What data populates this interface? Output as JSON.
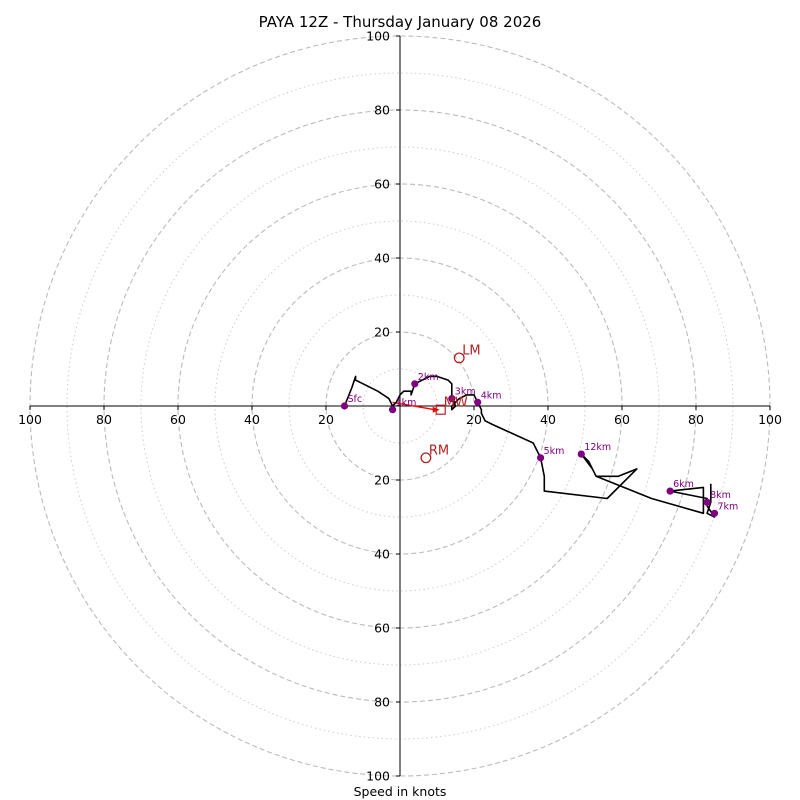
{
  "chart_data": {
    "type": "hodograph",
    "title": "PAYA 12Z - Thursday January 08 2026",
    "xlabel": "Speed in knots",
    "range": [
      -100,
      100
    ],
    "rings_major": [
      20,
      40,
      60,
      80,
      100
    ],
    "rings_minor": [
      10,
      30,
      50,
      70,
      90
    ],
    "x_ticks": [
      {
        "value": -100,
        "label": "100"
      },
      {
        "value": -80,
        "label": "80"
      },
      {
        "value": -60,
        "label": "60"
      },
      {
        "value": -40,
        "label": "40"
      },
      {
        "value": -20,
        "label": "20"
      },
      {
        "value": 20,
        "label": "20"
      },
      {
        "value": 40,
        "label": "40"
      },
      {
        "value": 60,
        "label": "60"
      },
      {
        "value": 80,
        "label": "80"
      },
      {
        "value": 100,
        "label": "100"
      }
    ],
    "y_ticks": [
      {
        "value": 100,
        "label": "100"
      },
      {
        "value": 80,
        "label": "80"
      },
      {
        "value": 60,
        "label": "60"
      },
      {
        "value": 40,
        "label": "40"
      },
      {
        "value": 20,
        "label": "20"
      },
      {
        "value": -20,
        "label": "20"
      },
      {
        "value": -40,
        "label": "40"
      },
      {
        "value": -60,
        "label": "60"
      },
      {
        "value": -80,
        "label": "80"
      },
      {
        "value": -100,
        "label": "100"
      }
    ],
    "hodograph_trace": [
      [
        -15,
        0
      ],
      [
        -13,
        5
      ],
      [
        -12,
        8
      ],
      [
        -12,
        7
      ],
      [
        -6,
        4
      ],
      [
        -3,
        2
      ],
      [
        -2,
        0
      ],
      [
        -1,
        1
      ],
      [
        0,
        3
      ],
      [
        1,
        4
      ],
      [
        3,
        4
      ],
      [
        3,
        3
      ],
      [
        4,
        6
      ],
      [
        6,
        7
      ],
      [
        8,
        8
      ],
      [
        10,
        8
      ],
      [
        13,
        7
      ],
      [
        14,
        6
      ],
      [
        14,
        3
      ],
      [
        15,
        0
      ],
      [
        14,
        -1
      ],
      [
        14,
        0
      ],
      [
        16,
        2
      ],
      [
        18,
        3
      ],
      [
        20,
        3
      ],
      [
        21,
        1
      ],
      [
        22,
        -1
      ],
      [
        22,
        -2
      ],
      [
        23,
        -4
      ],
      [
        25,
        -5
      ],
      [
        36,
        -10
      ],
      [
        38,
        -14
      ],
      [
        39,
        -19
      ],
      [
        39,
        -23
      ],
      [
        56,
        -25
      ],
      [
        64,
        -17
      ],
      [
        59,
        -19
      ],
      [
        53,
        -19
      ],
      [
        52,
        -17
      ],
      [
        49,
        -13
      ],
      [
        51,
        -15
      ],
      [
        52,
        -17
      ],
      [
        53,
        -19
      ],
      [
        68,
        -25
      ],
      [
        82,
        -29
      ],
      [
        82,
        -22
      ],
      [
        73,
        -23
      ],
      [
        83,
        -25
      ],
      [
        83,
        -27
      ],
      [
        85,
        -30
      ],
      [
        83,
        -29
      ],
      [
        84,
        -26
      ],
      [
        84,
        -21
      ]
    ],
    "height_points": [
      {
        "label": "Sfc",
        "u": -15,
        "v": 0
      },
      {
        "label": "1km",
        "u": -2,
        "v": -1
      },
      {
        "label": "2km",
        "u": 4,
        "v": 6
      },
      {
        "label": "3km",
        "u": 14,
        "v": 2
      },
      {
        "label": "4km",
        "u": 21,
        "v": 1
      },
      {
        "label": "5km",
        "u": 38,
        "v": -14
      },
      {
        "label": "6km",
        "u": 73,
        "v": -23
      },
      {
        "label": "7km",
        "u": 85,
        "v": -29
      },
      {
        "label": "8km",
        "u": 83,
        "v": -26
      },
      {
        "label": "12km",
        "u": 49,
        "v": -13
      }
    ],
    "storm_motion": {
      "LM": {
        "label": "LM",
        "u": 16,
        "v": 13
      },
      "RM": {
        "label": "RM",
        "u": 7,
        "v": -14
      },
      "MW": {
        "label": "MW",
        "u": 11,
        "v": -1
      }
    },
    "colors": {
      "trace": "#000000",
      "height_points": "#800080",
      "storm": "#b22222",
      "shear_vector": "#ff0000",
      "rings": "#bbbbbb",
      "minor_rings": "#cccccc"
    }
  }
}
